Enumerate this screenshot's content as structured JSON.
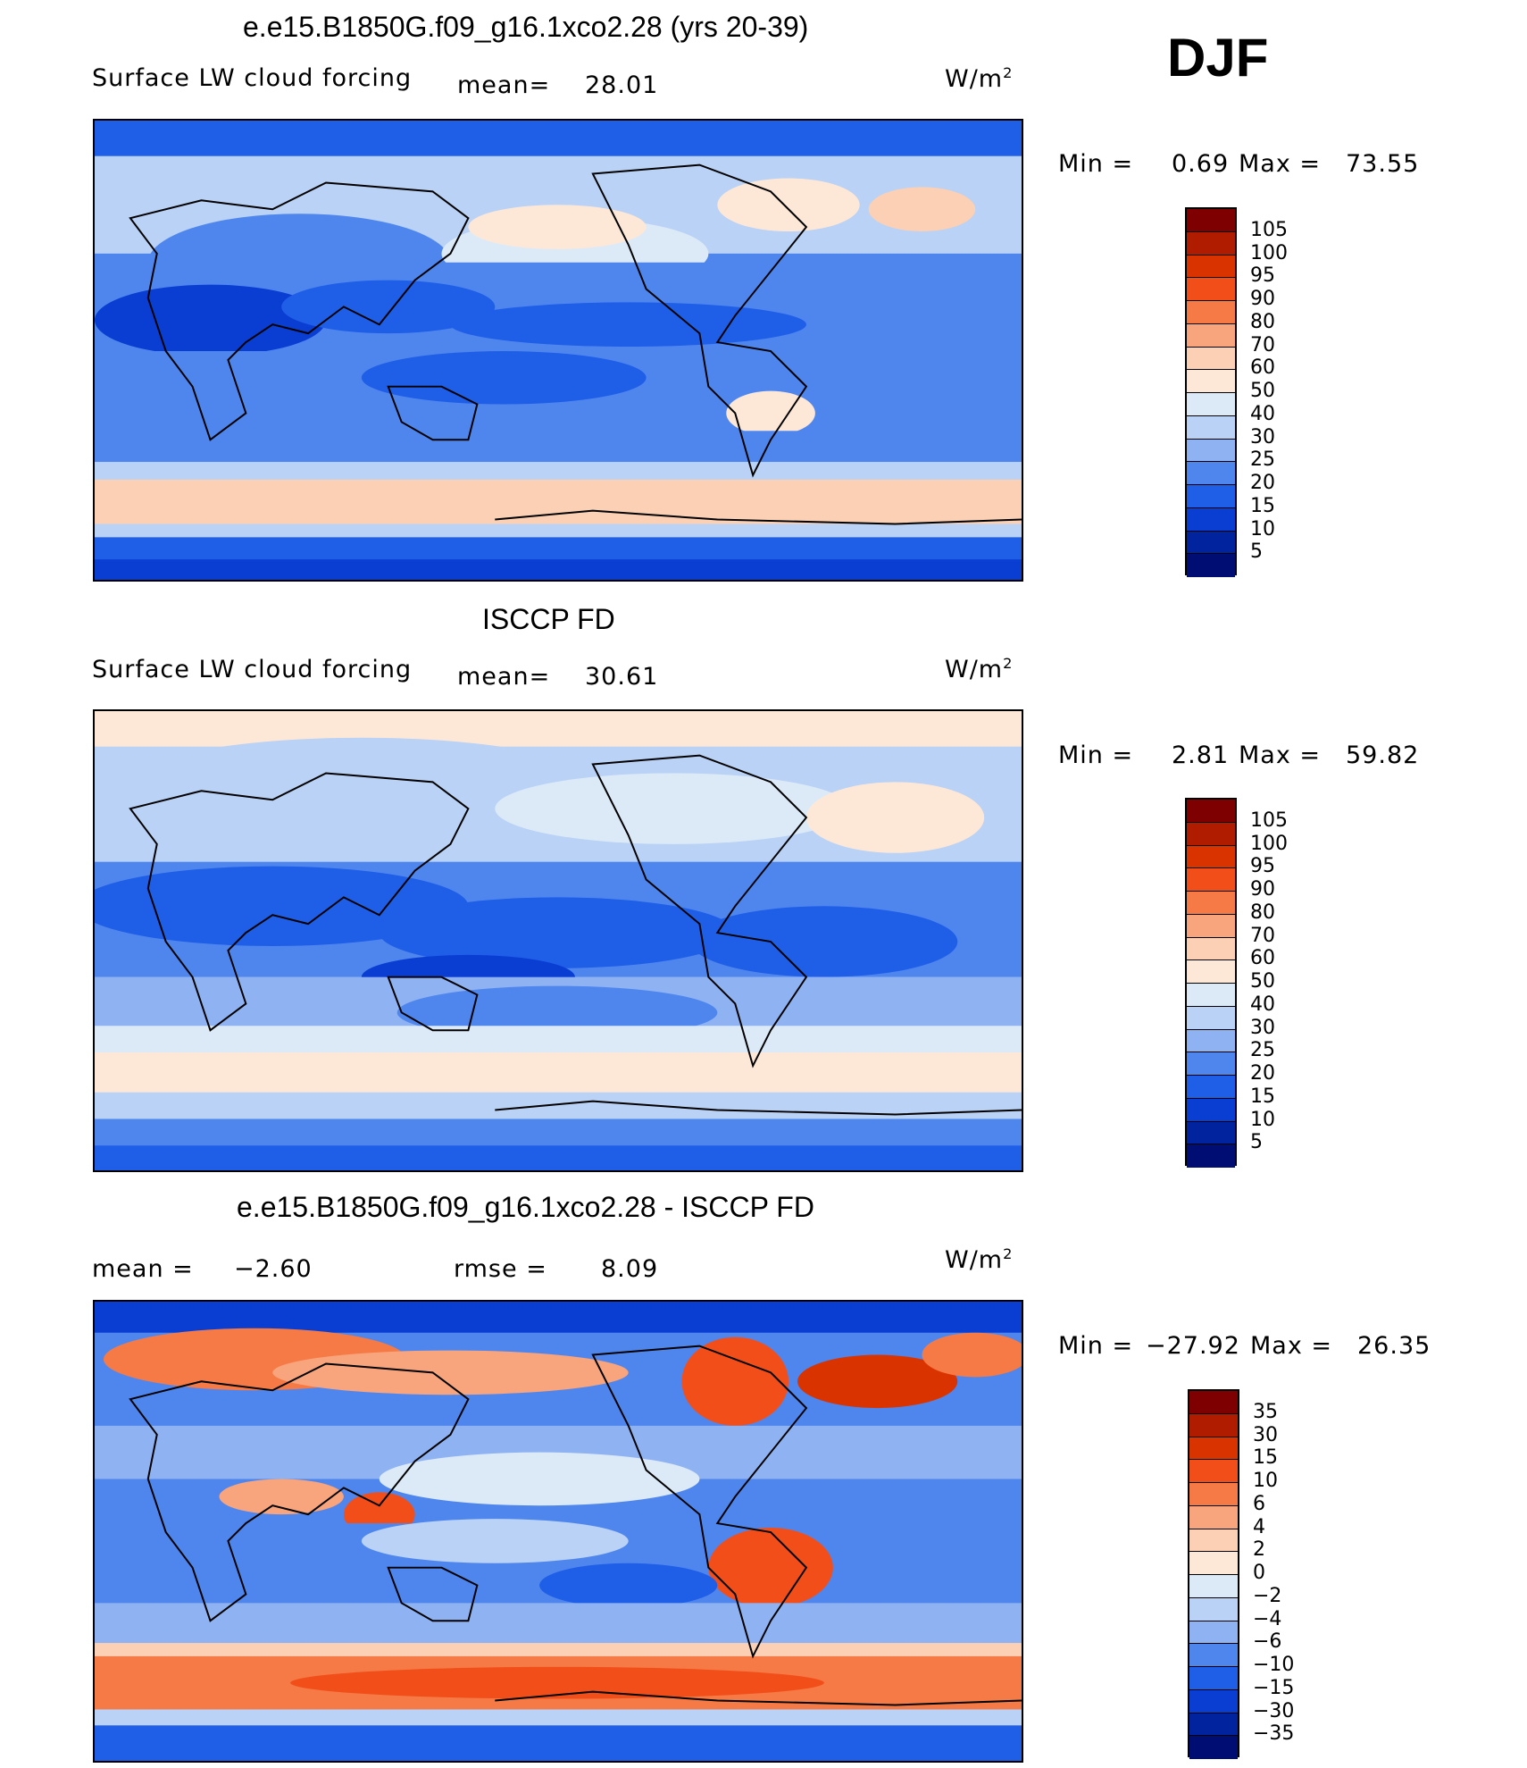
{
  "season": "DJF",
  "panels": [
    {
      "title": "e.e15.B1850G.f09_g16.1xco2.28 (yrs 20-39)",
      "left_label": "Surface LW cloud forcing",
      "mean_label": "mean=",
      "mean_value": "28.01",
      "units": "W/m",
      "units_sup": "2",
      "min_label": "Min =",
      "min_value": "0.69",
      "max_label": "Max =",
      "max_value": "73.55",
      "colorbar_labels": [
        "105",
        "100",
        "95",
        "90",
        "80",
        "70",
        "60",
        "50",
        "40",
        "30",
        "25",
        "20",
        "15",
        "10",
        "5"
      ]
    },
    {
      "title": "ISCCP FD",
      "left_label": "Surface LW cloud forcing",
      "mean_label": "mean=",
      "mean_value": "30.61",
      "units": "W/m",
      "units_sup": "2",
      "min_label": "Min =",
      "min_value": "2.81",
      "max_label": "Max =",
      "max_value": "59.82",
      "colorbar_labels": [
        "105",
        "100",
        "95",
        "90",
        "80",
        "70",
        "60",
        "50",
        "40",
        "30",
        "25",
        "20",
        "15",
        "10",
        "5"
      ]
    },
    {
      "title": "e.e15.B1850G.f09_g16.1xco2.28 - ISCCP FD",
      "mean_label": "mean =",
      "mean_value": "−2.60",
      "rmse_label": "rmse =",
      "rmse_value": "8.09",
      "units": "W/m",
      "units_sup": "2",
      "min_label": "Min =",
      "min_value": "−27.92",
      "max_label": "Max =",
      "max_value": "26.35",
      "colorbar_labels": [
        "35",
        "30",
        "15",
        "10",
        "6",
        "4",
        "2",
        "0",
        "−2",
        "−4",
        "−6",
        "−10",
        "−15",
        "−30",
        "−35"
      ]
    }
  ],
  "colorbar_colors": [
    "#7f0000",
    "#b01c00",
    "#d93400",
    "#f24e1a",
    "#f57a45",
    "#f8a47c",
    "#fbd0b4",
    "#fde8d8",
    "#dceaf8",
    "#b9d2f5",
    "#8fb3f2",
    "#4f86ee",
    "#1f5fe8",
    "#0a3ed2",
    "#02239e",
    "#000e73"
  ]
}
